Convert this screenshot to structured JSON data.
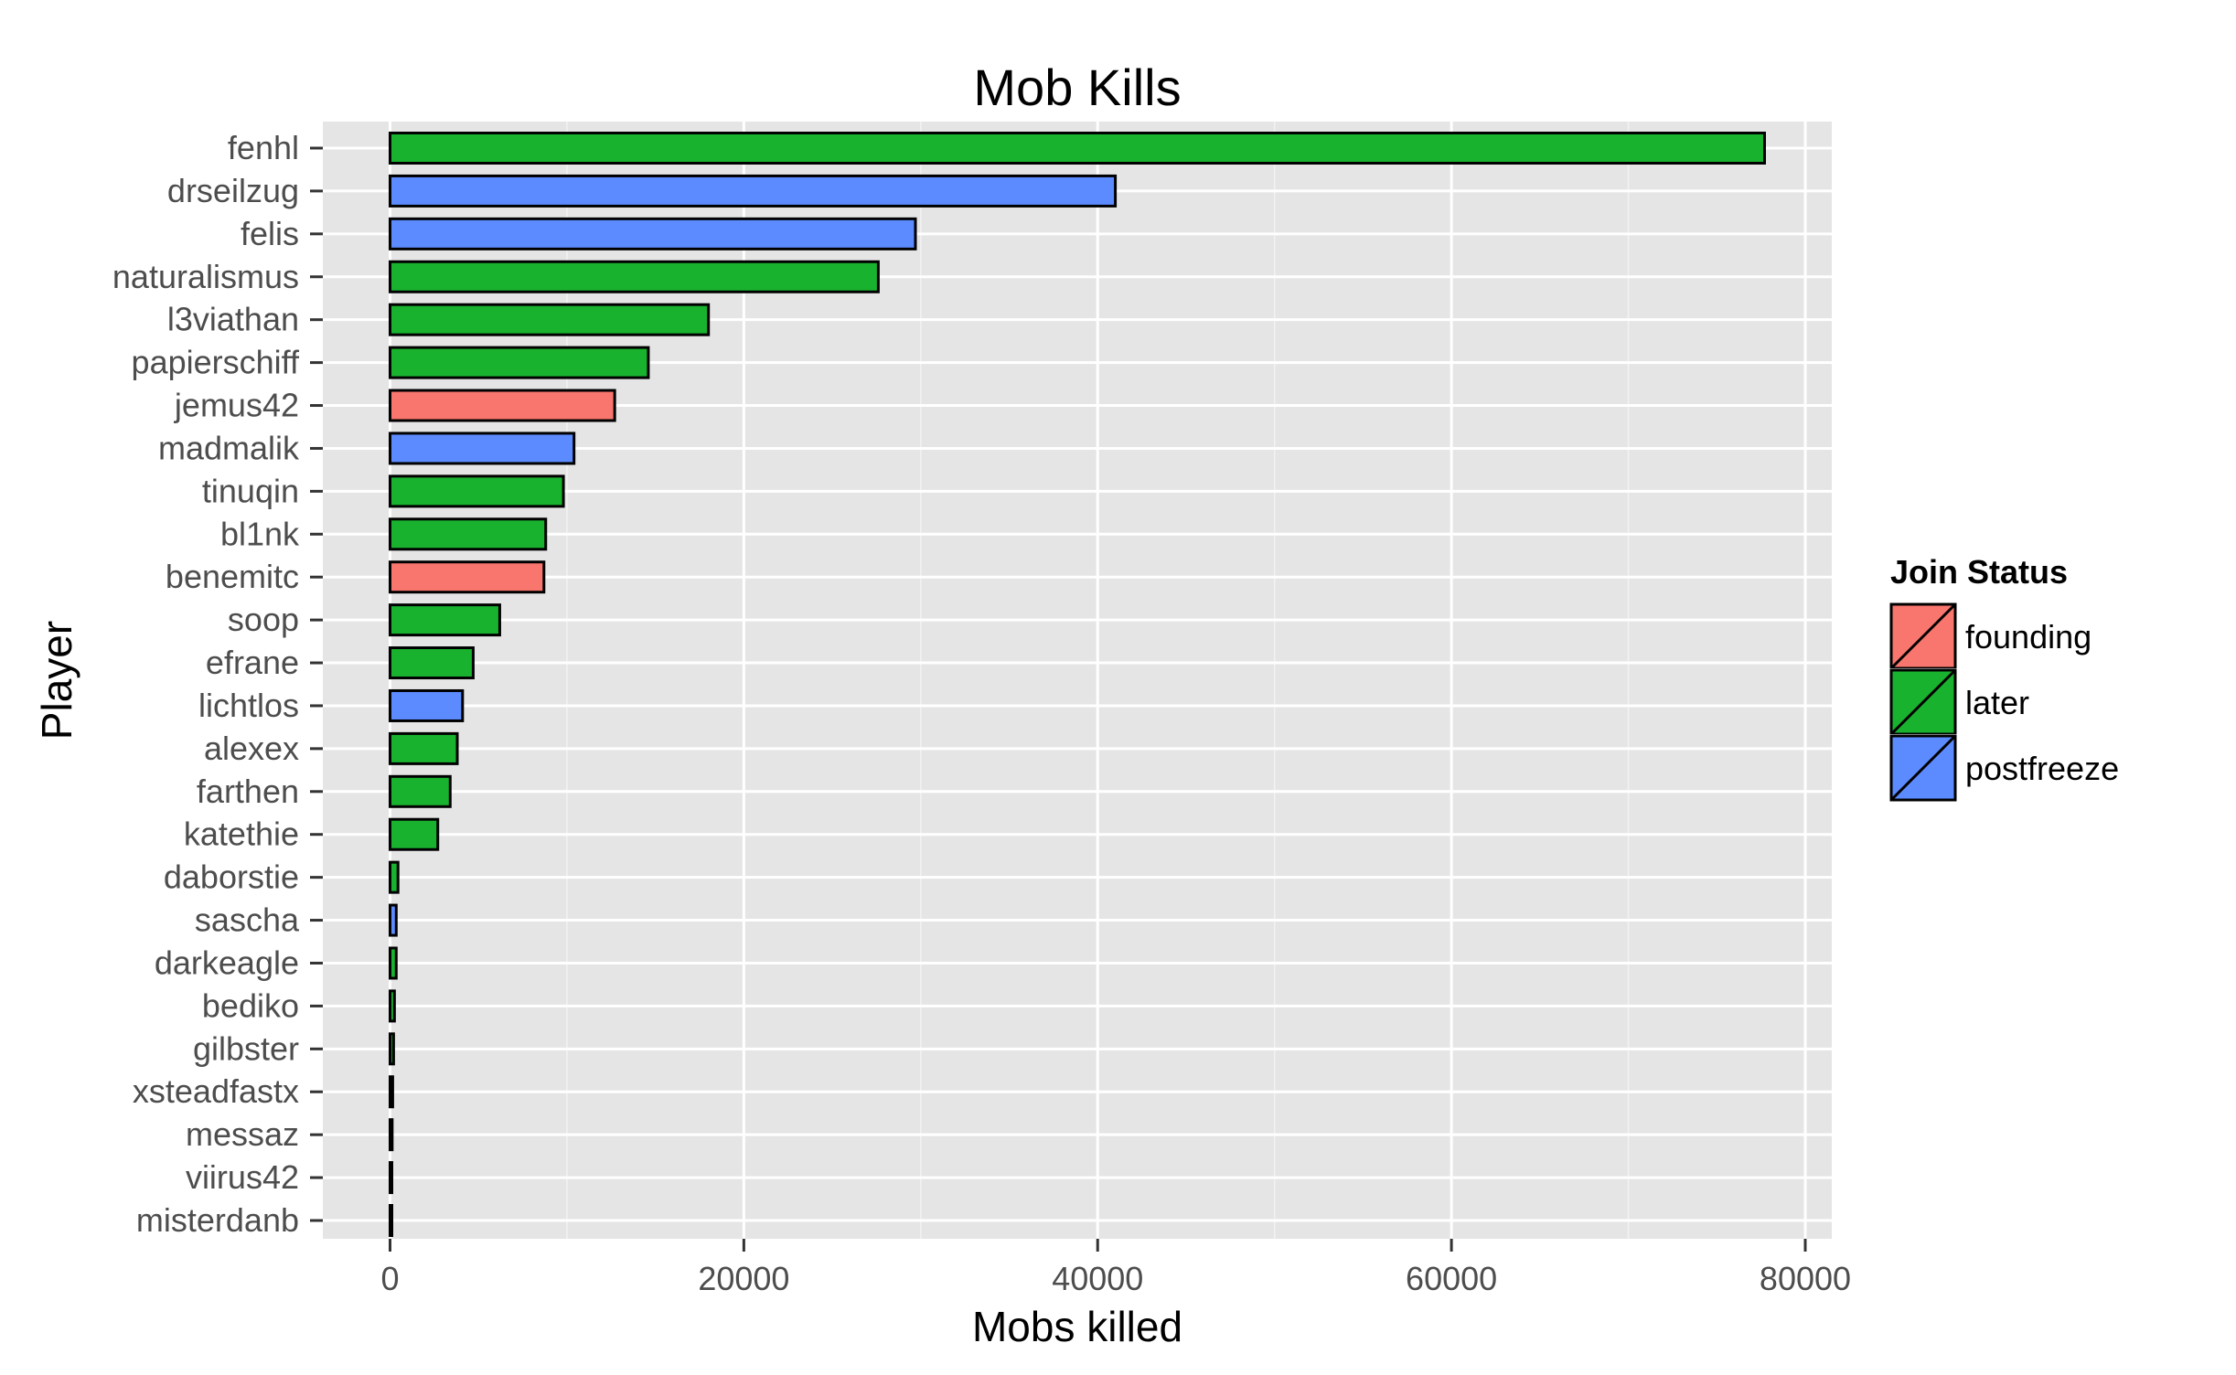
{
  "chart_data": {
    "type": "bar",
    "orientation": "horizontal",
    "title": "Mob Kills",
    "xlabel": "Mobs killed",
    "ylabel": "Player",
    "xlim": [
      -3800,
      81500
    ],
    "x_ticks": [
      0,
      20000,
      40000,
      60000,
      80000
    ],
    "grid": true,
    "legend": {
      "title": "Join Status",
      "position": "right",
      "entries": [
        {
          "name": "founding",
          "color": "#F8766D"
        },
        {
          "name": "later",
          "color": "#19B22F"
        },
        {
          "name": "postfreeze",
          "color": "#5C8BFF"
        }
      ]
    },
    "categories": [
      "fenhl",
      "drseilzug",
      "felis",
      "naturalismus",
      "l3viathan",
      "papierschiff",
      "jemus42",
      "madmalik",
      "tinuqin",
      "bl1nk",
      "benemitc",
      "soop",
      "efrane",
      "lichtlos",
      "alexex",
      "farthen",
      "katethie",
      "daborstie",
      "sascha",
      "darkeagle",
      "bediko",
      "gilbster",
      "xsteadfastx",
      "messaz",
      "viirus42",
      "misterdanb"
    ],
    "values": [
      77700,
      41000,
      29700,
      27600,
      18000,
      14600,
      12700,
      10400,
      9800,
      8800,
      8700,
      6200,
      4700,
      4100,
      3800,
      3400,
      2700,
      450,
      350,
      350,
      250,
      200,
      150,
      120,
      100,
      80
    ],
    "status": [
      "later",
      "postfreeze",
      "postfreeze",
      "later",
      "later",
      "later",
      "founding",
      "postfreeze",
      "later",
      "later",
      "founding",
      "later",
      "later",
      "postfreeze",
      "later",
      "later",
      "later",
      "later",
      "postfreeze",
      "later",
      "later",
      "later",
      "later",
      "later",
      "later",
      "later"
    ]
  }
}
